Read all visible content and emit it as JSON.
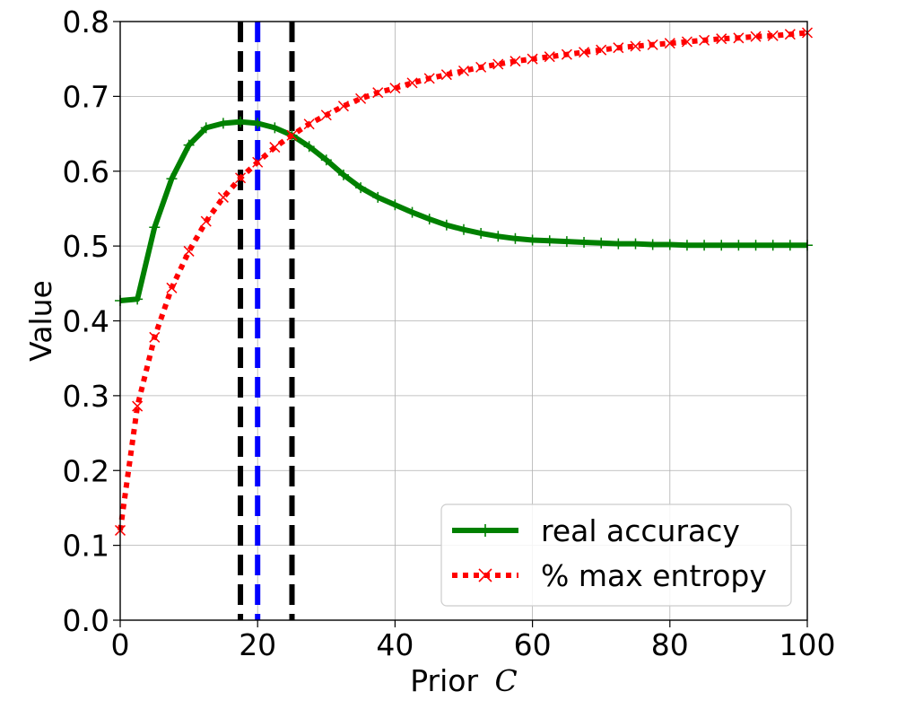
{
  "chart_data": {
    "type": "line",
    "xlabel": "Prior",
    "xlabel_symbol": "C",
    "ylabel": "Value",
    "xlim": [
      0,
      100
    ],
    "ylim": [
      0,
      0.8
    ],
    "grid": true,
    "legend_position": "lower-right",
    "x_ticks": [
      "0",
      "20",
      "40",
      "60",
      "80",
      "100"
    ],
    "y_ticks": [
      "0.0",
      "0.1",
      "0.2",
      "0.3",
      "0.4",
      "0.5",
      "0.6",
      "0.7",
      "0.8"
    ],
    "vertical_lines": [
      {
        "x": 17.5,
        "color": "#000000",
        "style": "dashed"
      },
      {
        "x": 20,
        "color": "#0000ff",
        "style": "dashed"
      },
      {
        "x": 25,
        "color": "#000000",
        "style": "dashed"
      }
    ],
    "series": [
      {
        "name": "real accuracy",
        "color": "#008000",
        "line_style": "solid",
        "marker": "+",
        "x": [
          0,
          2.5,
          5,
          7.5,
          10,
          12.5,
          15,
          17.5,
          20,
          22.5,
          25,
          27.5,
          30,
          32.5,
          35,
          37.5,
          40,
          42.5,
          45,
          47.5,
          50,
          52.5,
          55,
          57.5,
          60,
          62.5,
          65,
          67.5,
          70,
          72.5,
          75,
          77.5,
          80,
          82.5,
          85,
          87.5,
          90,
          92.5,
          95,
          97.5,
          100
        ],
        "y": [
          0.427,
          0.429,
          0.525,
          0.59,
          0.635,
          0.658,
          0.664,
          0.666,
          0.664,
          0.658,
          0.648,
          0.633,
          0.615,
          0.595,
          0.578,
          0.565,
          0.555,
          0.545,
          0.536,
          0.528,
          0.522,
          0.517,
          0.513,
          0.51,
          0.508,
          0.507,
          0.506,
          0.505,
          0.504,
          0.503,
          0.503,
          0.502,
          0.502,
          0.501,
          0.501,
          0.501,
          0.501,
          0.501,
          0.501,
          0.501,
          0.501
        ]
      },
      {
        "name": "% max entropy",
        "color": "#ff0000",
        "line_style": "dotted",
        "marker": "x",
        "x": [
          0,
          2.5,
          5,
          7.5,
          10,
          12.5,
          15,
          17.5,
          20,
          22.5,
          25,
          27.5,
          30,
          32.5,
          35,
          37.5,
          40,
          42.5,
          45,
          47.5,
          50,
          52.5,
          55,
          57.5,
          60,
          62.5,
          65,
          67.5,
          70,
          72.5,
          75,
          77.5,
          80,
          82.5,
          85,
          87.5,
          90,
          92.5,
          95,
          97.5,
          100
        ],
        "y": [
          0.12,
          0.286,
          0.378,
          0.444,
          0.493,
          0.533,
          0.565,
          0.591,
          0.612,
          0.632,
          0.648,
          0.663,
          0.675,
          0.687,
          0.697,
          0.705,
          0.711,
          0.718,
          0.724,
          0.729,
          0.734,
          0.739,
          0.743,
          0.747,
          0.75,
          0.753,
          0.756,
          0.759,
          0.762,
          0.765,
          0.767,
          0.769,
          0.771,
          0.773,
          0.775,
          0.777,
          0.778,
          0.78,
          0.781,
          0.783,
          0.785
        ]
      }
    ]
  }
}
